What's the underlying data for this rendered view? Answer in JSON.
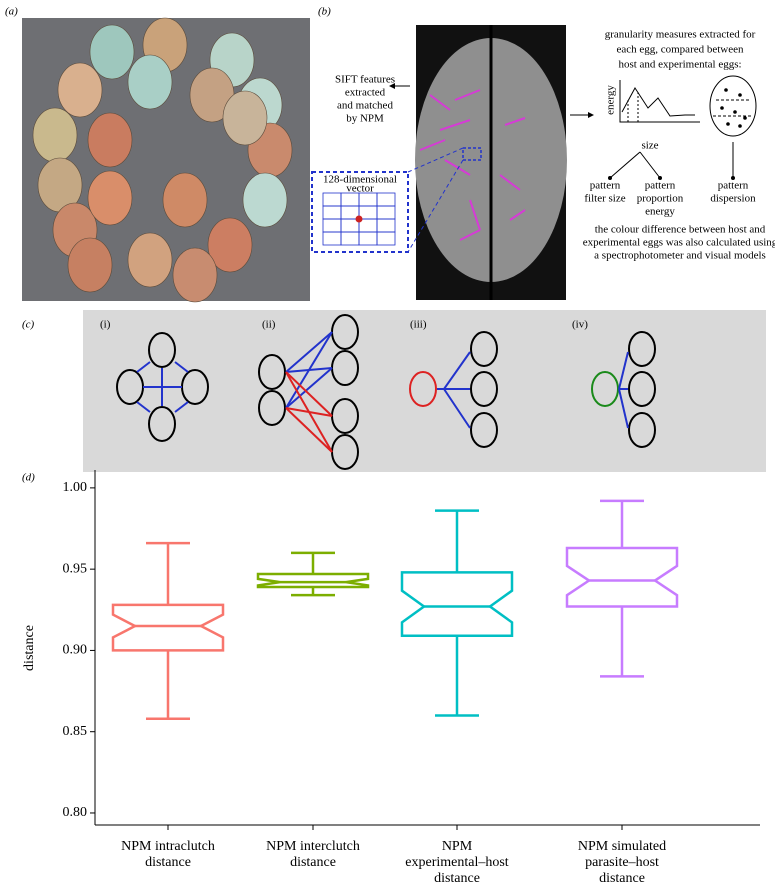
{
  "panels": {
    "a": {
      "label": "(a)"
    },
    "b": {
      "label": "(b)",
      "sift_text": [
        "SIFT features",
        "extracted",
        "and matched",
        "by NPM"
      ],
      "vector_text": [
        "128-dimensional",
        "vector"
      ],
      "granularity_text": [
        "granularity measures extracted for",
        "each egg, compared between",
        "host and experimental eggs:"
      ],
      "axis_energy": "energy",
      "axis_size": "size",
      "outputs": [
        [
          "pattern",
          "filter size"
        ],
        [
          "pattern",
          "proportion",
          "energy"
        ],
        [
          "pattern",
          "dispersion"
        ]
      ],
      "colour_text": [
        "the colour difference between host and",
        "experimental eggs was also calculated using",
        "a spectrophotometer and visual models"
      ]
    },
    "c": {
      "label": "(c)",
      "sublabels": [
        "(i)",
        "(ii)",
        "(iii)",
        "(iv)"
      ]
    },
    "d": {
      "label": "(d)"
    }
  },
  "chart_data": {
    "type": "box",
    "ylabel": "distance",
    "categories": [
      [
        "NPM intraclutch",
        "distance"
      ],
      [
        "NPM interclutch",
        "distance"
      ],
      [
        "NPM",
        "experimental–host",
        "distance"
      ],
      [
        "NPM simulated",
        "parasite–host",
        "distance"
      ]
    ],
    "boxes": [
      {
        "color": "#f8766d",
        "low": 0.858,
        "q1": 0.9,
        "median": 0.915,
        "q3": 0.928,
        "high": 0.966
      },
      {
        "color": "#7cae00",
        "low": 0.934,
        "q1": 0.939,
        "median": 0.942,
        "q3": 0.947,
        "high": 0.96
      },
      {
        "color": "#00bfc4",
        "low": 0.86,
        "q1": 0.909,
        "median": 0.927,
        "q3": 0.948,
        "high": 0.986
      },
      {
        "color": "#c77cff",
        "low": 0.884,
        "q1": 0.927,
        "median": 0.943,
        "q3": 0.963,
        "high": 0.992
      }
    ],
    "ylim": [
      0.7926,
      1.011
    ],
    "yticks": [
      {
        "value": 0.8,
        "label": "0.80"
      },
      {
        "value": 0.85,
        "label": "0.85"
      },
      {
        "value": 0.9,
        "label": "0.90"
      },
      {
        "value": 0.95,
        "label": "0.95"
      },
      {
        "value": 1.0,
        "label": "1.00"
      }
    ]
  }
}
